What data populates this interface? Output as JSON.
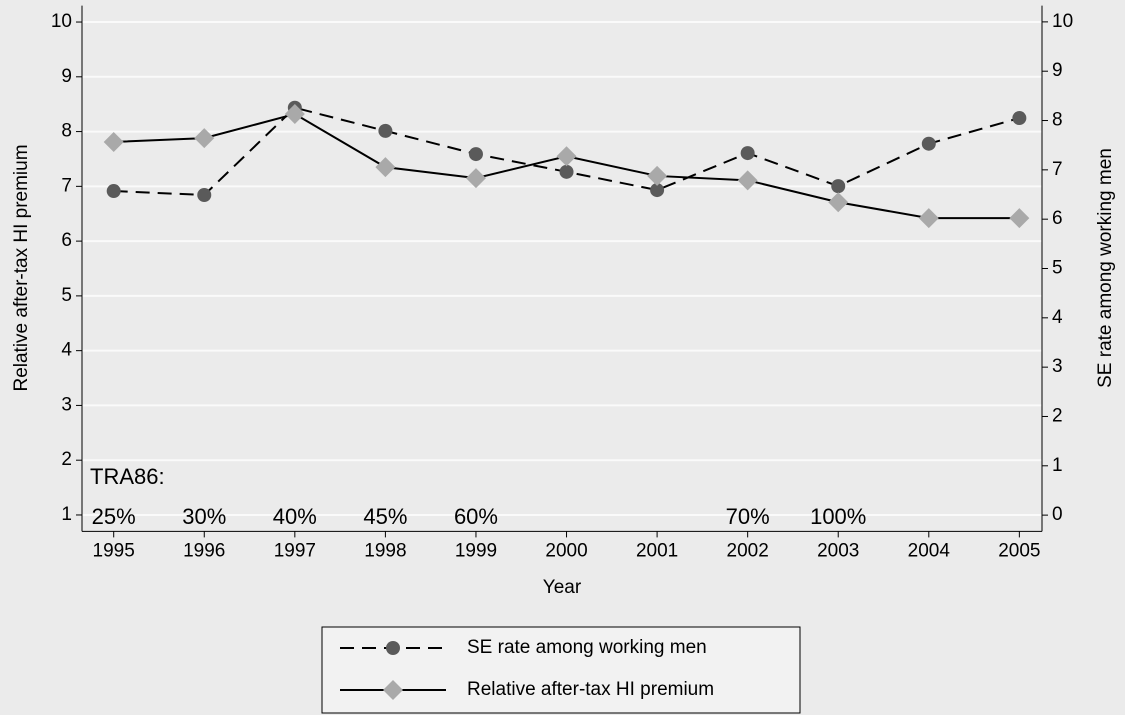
{
  "chart_data": {
    "type": "line",
    "x": [
      1995,
      1996,
      1997,
      1998,
      1999,
      2000,
      2001,
      2002,
      2003,
      2004,
      2005
    ],
    "xlabel": "Year",
    "ylabel": "Relative after-tax HI premium",
    "y2label": "SE rate among working men",
    "xlim": [
      1994.65,
      2005.25
    ],
    "xticks": [
      1995,
      1996,
      1997,
      1998,
      1999,
      2000,
      2001,
      2002,
      2003,
      2004,
      2005
    ],
    "ylim": [
      0.7,
      10.3
    ],
    "yticks": [
      1,
      2,
      3,
      4,
      5,
      6,
      7,
      8,
      9,
      10
    ],
    "y2lim": [
      -0.33,
      10.33
    ],
    "y2ticks": [
      0,
      1,
      2,
      3,
      4,
      5,
      6,
      7,
      8,
      9,
      10
    ],
    "grid": true,
    "series": [
      {
        "name": "SE rate among working men",
        "color": "#5a5a5a",
        "line_color": "#000000",
        "dash": "dashed",
        "marker": "circle",
        "axis": "y2",
        "values": [
          6.57,
          6.49,
          8.26,
          7.79,
          7.32,
          6.96,
          6.59,
          7.34,
          6.67,
          7.53,
          8.05
        ]
      },
      {
        "name": "Relative after-tax HI premium",
        "color": "#a9a9a9",
        "line_color": "#000000",
        "dash": "solid",
        "marker": "diamond",
        "axis": "y",
        "values": [
          7.81,
          7.88,
          8.32,
          7.35,
          7.15,
          7.55,
          7.19,
          7.11,
          6.71,
          6.42,
          6.42
        ]
      }
    ],
    "annotation_heading": "TRA86:",
    "annotations": [
      {
        "x": 1995,
        "text": "25%"
      },
      {
        "x": 1996,
        "text": "30%"
      },
      {
        "x": 1997,
        "text": "40%"
      },
      {
        "x": 1998,
        "text": "45%"
      },
      {
        "x": 1999,
        "text": "60%"
      },
      {
        "x": 2002,
        "text": "70%"
      },
      {
        "x": 2003,
        "text": "100%"
      }
    ]
  }
}
